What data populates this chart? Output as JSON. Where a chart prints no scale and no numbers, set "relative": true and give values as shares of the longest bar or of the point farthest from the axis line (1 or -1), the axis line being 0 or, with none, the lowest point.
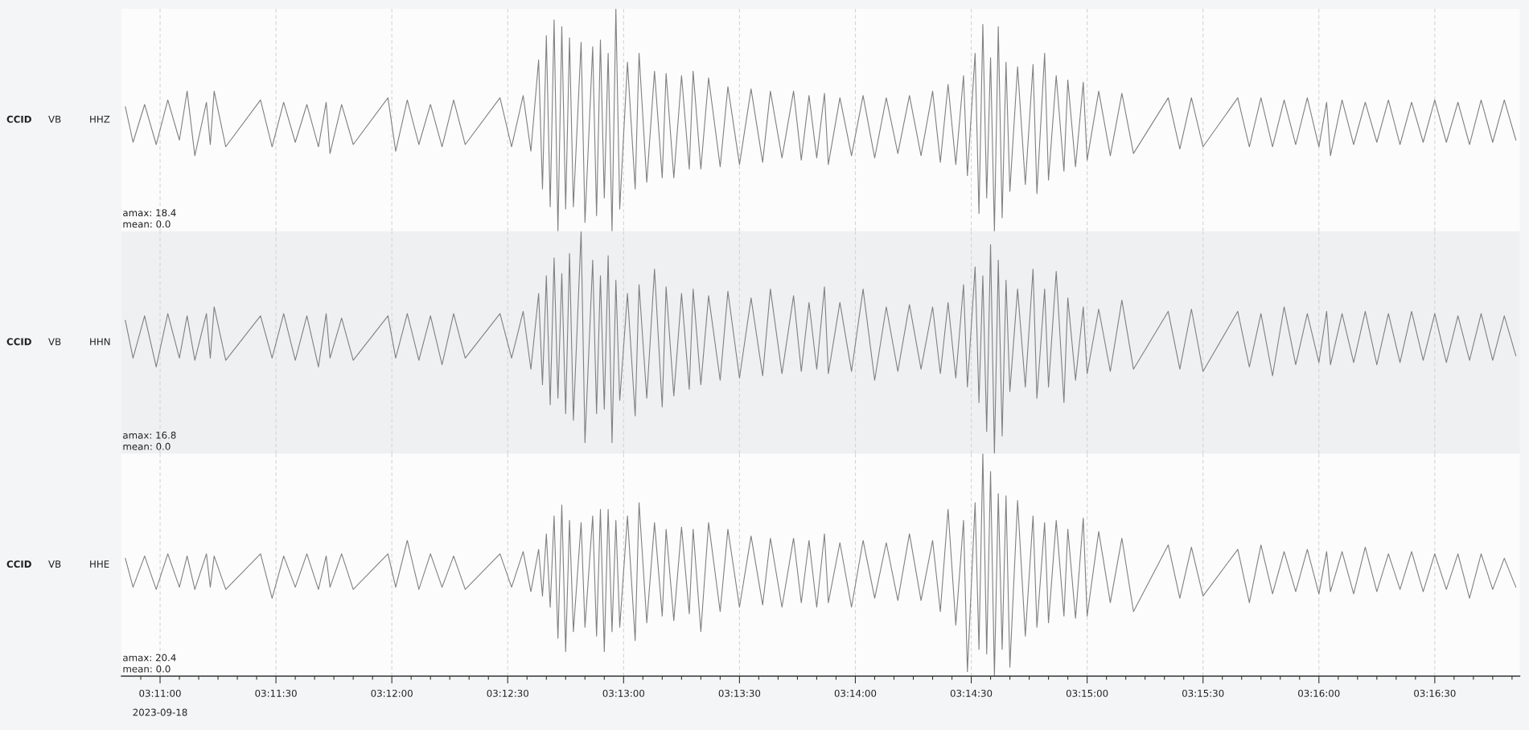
{
  "chart_data": [
    {
      "type": "line",
      "relative": true,
      "grid": "x",
      "tick_labels": false,
      "xlim": [
        "2023-09-18T03:10:50",
        "2023-09-18T03:16:52"
      ],
      "xticks": [
        {
          "value": "2023-09-18T03:11:00",
          "label": null
        },
        {
          "value": "2023-09-18T03:11:30",
          "label": null
        },
        {
          "value": "2023-09-18T03:12:00",
          "label": null
        },
        {
          "value": "2023-09-18T03:12:30",
          "label": null
        },
        {
          "value": "2023-09-18T03:13:00",
          "label": null
        },
        {
          "value": "2023-09-18T03:13:30",
          "label": null
        },
        {
          "value": "2023-09-18T03:14:00",
          "label": null
        },
        {
          "value": "2023-09-18T03:14:30",
          "label": null
        },
        {
          "value": "2023-09-18T03:15:00",
          "label": null
        },
        {
          "value": "2023-09-18T03:15:30",
          "label": null
        },
        {
          "value": "2023-09-18T03:16:00",
          "label": null
        },
        {
          "value": "2023-09-18T03:16:30",
          "label": null
        }
      ],
      "x": [
        "2023-09-18T03:10:51",
        "2023-09-18T03:10:53",
        "2023-09-18T03:10:56",
        "2023-09-18T03:10:59",
        "2023-09-18T03:11:02",
        "2023-09-18T03:11:05",
        "2023-09-18T03:11:07",
        "2023-09-18T03:11:09",
        "2023-09-18T03:11:12",
        "2023-09-18T03:11:13",
        "2023-09-18T03:11:14",
        "2023-09-18T03:11:17",
        "2023-09-18T03:11:26",
        "2023-09-18T03:11:29",
        "2023-09-18T03:11:32",
        "2023-09-18T03:11:35",
        "2023-09-18T03:11:38",
        "2023-09-18T03:11:41",
        "2023-09-18T03:11:43",
        "2023-09-18T03:11:44",
        "2023-09-18T03:11:47",
        "2023-09-18T03:11:50",
        "2023-09-18T03:11:59",
        "2023-09-18T03:12:01",
        "2023-09-18T03:12:04",
        "2023-09-18T03:12:07",
        "2023-09-18T03:12:10",
        "2023-09-18T03:12:13",
        "2023-09-18T03:12:16",
        "2023-09-18T03:12:19",
        "2023-09-18T03:12:28",
        "2023-09-18T03:12:31",
        "2023-09-18T03:12:34",
        "2023-09-18T03:12:36",
        "2023-09-18T03:12:38",
        "2023-09-18T03:12:39",
        "2023-09-18T03:12:40",
        "2023-09-18T03:12:41",
        "2023-09-18T03:12:42",
        "2023-09-18T03:12:43",
        "2023-09-18T03:12:44",
        "2023-09-18T03:12:45",
        "2023-09-18T03:12:46",
        "2023-09-18T03:12:47",
        "2023-09-18T03:12:49",
        "2023-09-18T03:12:50",
        "2023-09-18T03:12:52",
        "2023-09-18T03:12:53",
        "2023-09-18T03:12:54",
        "2023-09-18T03:12:55",
        "2023-09-18T03:12:56",
        "2023-09-18T03:12:57",
        "2023-09-18T03:12:58",
        "2023-09-18T03:12:59",
        "2023-09-18T03:13:01",
        "2023-09-18T03:13:03",
        "2023-09-18T03:13:04",
        "2023-09-18T03:13:06",
        "2023-09-18T03:13:08",
        "2023-09-18T03:13:10",
        "2023-09-18T03:13:11",
        "2023-09-18T03:13:13",
        "2023-09-18T03:13:15",
        "2023-09-18T03:13:17",
        "2023-09-18T03:13:18",
        "2023-09-18T03:13:20",
        "2023-09-18T03:13:22",
        "2023-09-18T03:13:25",
        "2023-09-18T03:13:27",
        "2023-09-18T03:13:30",
        "2023-09-18T03:13:33",
        "2023-09-18T03:13:36",
        "2023-09-18T03:13:38",
        "2023-09-18T03:13:41",
        "2023-09-18T03:13:44",
        "2023-09-18T03:13:46",
        "2023-09-18T03:13:48",
        "2023-09-18T03:13:50",
        "2023-09-18T03:13:52",
        "2023-09-18T03:13:53",
        "2023-09-18T03:13:56",
        "2023-09-18T03:13:59",
        "2023-09-18T03:14:02",
        "2023-09-18T03:14:05",
        "2023-09-18T03:14:08",
        "2023-09-18T03:14:11",
        "2023-09-18T03:14:14",
        "2023-09-18T03:14:17",
        "2023-09-18T03:14:20",
        "2023-09-18T03:14:22",
        "2023-09-18T03:14:24",
        "2023-09-18T03:14:26",
        "2023-09-18T03:14:28",
        "2023-09-18T03:14:29",
        "2023-09-18T03:14:31",
        "2023-09-18T03:14:32",
        "2023-09-18T03:14:33",
        "2023-09-18T03:14:34",
        "2023-09-18T03:14:35",
        "2023-09-18T03:14:36",
        "2023-09-18T03:14:37",
        "2023-09-18T03:14:38",
        "2023-09-18T03:14:39",
        "2023-09-18T03:14:40",
        "2023-09-18T03:14:42",
        "2023-09-18T03:14:44",
        "2023-09-18T03:14:46",
        "2023-09-18T03:14:47",
        "2023-09-18T03:14:49",
        "2023-09-18T03:14:50",
        "2023-09-18T03:14:52",
        "2023-09-18T03:14:54",
        "2023-09-18T03:14:55",
        "2023-09-18T03:14:57",
        "2023-09-18T03:14:59",
        "2023-09-18T03:15:00",
        "2023-09-18T03:15:03",
        "2023-09-18T03:15:06",
        "2023-09-18T03:15:09",
        "2023-09-18T03:15:12",
        "2023-09-18T03:15:21",
        "2023-09-18T03:15:24",
        "2023-09-18T03:15:27",
        "2023-09-18T03:15:30",
        "2023-09-18T03:15:39",
        "2023-09-18T03:15:42",
        "2023-09-18T03:15:45",
        "2023-09-18T03:15:48",
        "2023-09-18T03:15:51",
        "2023-09-18T03:15:54",
        "2023-09-18T03:15:57",
        "2023-09-18T03:16:00",
        "2023-09-18T03:16:02",
        "2023-09-18T03:16:03",
        "2023-09-18T03:16:06",
        "2023-09-18T03:16:09",
        "2023-09-18T03:16:12",
        "2023-09-18T03:16:15",
        "2023-09-18T03:16:18",
        "2023-09-18T03:16:21",
        "2023-09-18T03:16:24",
        "2023-09-18T03:16:27",
        "2023-09-18T03:16:30",
        "2023-09-18T03:16:33",
        "2023-09-18T03:16:36",
        "2023-09-18T03:16:39",
        "2023-09-18T03:16:42",
        "2023-09-18T03:16:45",
        "2023-09-18T03:16:48",
        "2023-09-18T03:16:51"
      ],
      "series": [
        {
          "color": "#808080",
          "values": [
            0.56,
            0.4,
            0.57,
            0.39,
            0.59,
            0.41,
            0.63,
            0.34,
            0.58,
            0.39,
            0.63,
            0.38,
            0.59,
            0.38,
            0.58,
            0.4,
            0.57,
            0.38,
            0.58,
            0.35,
            0.57,
            0.39,
            0.6,
            0.36,
            0.59,
            0.39,
            0.57,
            0.38,
            0.59,
            0.39,
            0.6,
            0.38,
            0.61,
            0.36,
            0.77,
            0.19,
            0.88,
            0.11,
            0.95,
            0,
            0.92,
            0.1,
            0.87,
            0.11,
            0.85,
            0.04,
            0.83,
            0.07,
            0.86,
            0.15,
            0.8,
            0,
            1,
            0.1,
            0.76,
            0.19,
            0.8,
            0.22,
            0.72,
            0.24,
            0.71,
            0.24,
            0.7,
            0.28,
            0.72,
            0.28,
            0.69,
            0.29,
            0.65,
            0.3,
            0.64,
            0.31,
            0.63,
            0.33,
            0.63,
            0.32,
            0.61,
            0.33,
            0.62,
            0.3,
            0.6,
            0.34,
            0.61,
            0.33,
            0.6,
            0.35,
            0.61,
            0.34,
            0.63,
            0.31,
            0.66,
            0.3,
            0.7,
            0.25,
            0.8,
            0.08,
            0.93,
            0.15,
            0.78,
            0,
            0.92,
            0.06,
            0.76,
            0.18,
            0.74,
            0.21,
            0.75,
            0.17,
            0.8,
            0.23,
            0.7,
            0.27,
            0.68,
            0.29,
            0.67,
            0.32,
            0.63,
            0.34,
            0.62,
            0.35,
            0.6,
            0.37,
            0.6,
            0.38,
            0.6,
            0.38,
            0.6,
            0.38,
            0.59,
            0.39,
            0.6,
            0.38,
            0.58,
            0.34,
            0.59,
            0.39,
            0.58,
            0.4,
            0.59,
            0.39,
            0.58,
            0.4,
            0.59,
            0.4,
            0.58,
            0.39,
            0.59,
            0.4,
            0.59,
            0.41
          ]
        }
      ],
      "annotations": [
        "CCID",
        "VB",
        "HHZ",
        "amax: 18.4",
        "mean: 0.0"
      ]
    },
    {
      "type": "line",
      "relative": true,
      "grid": "x",
      "tick_labels": false,
      "xlim": [
        "2023-09-18T03:10:50",
        "2023-09-18T03:16:52"
      ],
      "xticks": [
        {
          "value": "2023-09-18T03:11:00",
          "label": null
        },
        {
          "value": "2023-09-18T03:11:30",
          "label": null
        },
        {
          "value": "2023-09-18T03:12:00",
          "label": null
        },
        {
          "value": "2023-09-18T03:12:30",
          "label": null
        },
        {
          "value": "2023-09-18T03:13:00",
          "label": null
        },
        {
          "value": "2023-09-18T03:13:30",
          "label": null
        },
        {
          "value": "2023-09-18T03:14:00",
          "label": null
        },
        {
          "value": "2023-09-18T03:14:30",
          "label": null
        },
        {
          "value": "2023-09-18T03:15:00",
          "label": null
        },
        {
          "value": "2023-09-18T03:15:30",
          "label": null
        },
        {
          "value": "2023-09-18T03:16:00",
          "label": null
        },
        {
          "value": "2023-09-18T03:16:30",
          "label": null
        }
      ],
      "x": [
        "2023-09-18T03:10:51",
        "2023-09-18T03:10:53",
        "2023-09-18T03:10:56",
        "2023-09-18T03:10:59",
        "2023-09-18T03:11:02",
        "2023-09-18T03:11:05",
        "2023-09-18T03:11:07",
        "2023-09-18T03:11:09",
        "2023-09-18T03:11:12",
        "2023-09-18T03:11:13",
        "2023-09-18T03:11:14",
        "2023-09-18T03:11:17",
        "2023-09-18T03:11:26",
        "2023-09-18T03:11:29",
        "2023-09-18T03:11:32",
        "2023-09-18T03:11:35",
        "2023-09-18T03:11:38",
        "2023-09-18T03:11:41",
        "2023-09-18T03:11:43",
        "2023-09-18T03:11:44",
        "2023-09-18T03:11:47",
        "2023-09-18T03:11:50",
        "2023-09-18T03:11:59",
        "2023-09-18T03:12:01",
        "2023-09-18T03:12:04",
        "2023-09-18T03:12:07",
        "2023-09-18T03:12:10",
        "2023-09-18T03:12:13",
        "2023-09-18T03:12:16",
        "2023-09-18T03:12:19",
        "2023-09-18T03:12:28",
        "2023-09-18T03:12:31",
        "2023-09-18T03:12:34",
        "2023-09-18T03:12:36",
        "2023-09-18T03:12:38",
        "2023-09-18T03:12:39",
        "2023-09-18T03:12:40",
        "2023-09-18T03:12:41",
        "2023-09-18T03:12:42",
        "2023-09-18T03:12:43",
        "2023-09-18T03:12:44",
        "2023-09-18T03:12:45",
        "2023-09-18T03:12:46",
        "2023-09-18T03:12:47",
        "2023-09-18T03:12:49",
        "2023-09-18T03:12:50",
        "2023-09-18T03:12:52",
        "2023-09-18T03:12:53",
        "2023-09-18T03:12:54",
        "2023-09-18T03:12:55",
        "2023-09-18T03:12:56",
        "2023-09-18T03:12:57",
        "2023-09-18T03:12:58",
        "2023-09-18T03:12:59",
        "2023-09-18T03:13:01",
        "2023-09-18T03:13:03",
        "2023-09-18T03:13:04",
        "2023-09-18T03:13:06",
        "2023-09-18T03:13:08",
        "2023-09-18T03:13:10",
        "2023-09-18T03:13:11",
        "2023-09-18T03:13:13",
        "2023-09-18T03:13:15",
        "2023-09-18T03:13:17",
        "2023-09-18T03:13:18",
        "2023-09-18T03:13:20",
        "2023-09-18T03:13:22",
        "2023-09-18T03:13:25",
        "2023-09-18T03:13:27",
        "2023-09-18T03:13:30",
        "2023-09-18T03:13:33",
        "2023-09-18T03:13:36",
        "2023-09-18T03:13:38",
        "2023-09-18T03:13:41",
        "2023-09-18T03:13:44",
        "2023-09-18T03:13:46",
        "2023-09-18T03:13:48",
        "2023-09-18T03:13:50",
        "2023-09-18T03:13:52",
        "2023-09-18T03:13:53",
        "2023-09-18T03:13:56",
        "2023-09-18T03:13:59",
        "2023-09-18T03:14:02",
        "2023-09-18T03:14:05",
        "2023-09-18T03:14:08",
        "2023-09-18T03:14:11",
        "2023-09-18T03:14:14",
        "2023-09-18T03:14:17",
        "2023-09-18T03:14:20",
        "2023-09-18T03:14:22",
        "2023-09-18T03:14:24",
        "2023-09-18T03:14:26",
        "2023-09-18T03:14:28",
        "2023-09-18T03:14:29",
        "2023-09-18T03:14:31",
        "2023-09-18T03:14:32",
        "2023-09-18T03:14:33",
        "2023-09-18T03:14:34",
        "2023-09-18T03:14:35",
        "2023-09-18T03:14:36",
        "2023-09-18T03:14:37",
        "2023-09-18T03:14:38",
        "2023-09-18T03:14:39",
        "2023-09-18T03:14:40",
        "2023-09-18T03:14:42",
        "2023-09-18T03:14:44",
        "2023-09-18T03:14:46",
        "2023-09-18T03:14:47",
        "2023-09-18T03:14:49",
        "2023-09-18T03:14:50",
        "2023-09-18T03:14:52",
        "2023-09-18T03:14:54",
        "2023-09-18T03:14:55",
        "2023-09-18T03:14:57",
        "2023-09-18T03:14:59",
        "2023-09-18T03:15:00",
        "2023-09-18T03:15:03",
        "2023-09-18T03:15:06",
        "2023-09-18T03:15:09",
        "2023-09-18T03:15:12",
        "2023-09-18T03:15:21",
        "2023-09-18T03:15:24",
        "2023-09-18T03:15:27",
        "2023-09-18T03:15:30",
        "2023-09-18T03:15:39",
        "2023-09-18T03:15:42",
        "2023-09-18T03:15:45",
        "2023-09-18T03:15:48",
        "2023-09-18T03:15:51",
        "2023-09-18T03:15:54",
        "2023-09-18T03:15:57",
        "2023-09-18T03:16:00",
        "2023-09-18T03:16:02",
        "2023-09-18T03:16:03",
        "2023-09-18T03:16:06",
        "2023-09-18T03:16:09",
        "2023-09-18T03:16:12",
        "2023-09-18T03:16:15",
        "2023-09-18T03:16:18",
        "2023-09-18T03:16:21",
        "2023-09-18T03:16:24",
        "2023-09-18T03:16:27",
        "2023-09-18T03:16:30",
        "2023-09-18T03:16:33",
        "2023-09-18T03:16:36",
        "2023-09-18T03:16:39",
        "2023-09-18T03:16:42",
        "2023-09-18T03:16:45",
        "2023-09-18T03:16:48",
        "2023-09-18T03:16:51"
      ],
      "series": [
        {
          "color": "#808080",
          "values": [
            0.6,
            0.43,
            0.62,
            0.39,
            0.63,
            0.43,
            0.62,
            0.42,
            0.63,
            0.43,
            0.66,
            0.42,
            0.62,
            0.43,
            0.63,
            0.42,
            0.62,
            0.39,
            0.63,
            0.43,
            0.61,
            0.42,
            0.62,
            0.43,
            0.63,
            0.42,
            0.62,
            0.4,
            0.63,
            0.43,
            0.63,
            0.43,
            0.64,
            0.38,
            0.72,
            0.31,
            0.8,
            0.22,
            0.88,
            0.25,
            0.81,
            0.18,
            0.9,
            0.15,
            1,
            0.05,
            0.87,
            0.18,
            0.8,
            0.2,
            0.89,
            0.05,
            0.78,
            0.24,
            0.72,
            0.17,
            0.76,
            0.25,
            0.83,
            0.21,
            0.75,
            0.26,
            0.72,
            0.29,
            0.74,
            0.31,
            0.71,
            0.33,
            0.73,
            0.34,
            0.7,
            0.35,
            0.74,
            0.36,
            0.71,
            0.37,
            0.68,
            0.38,
            0.75,
            0.36,
            0.68,
            0.37,
            0.74,
            0.33,
            0.66,
            0.37,
            0.67,
            0.38,
            0.66,
            0.36,
            0.68,
            0.34,
            0.76,
            0.3,
            0.84,
            0.23,
            0.8,
            0.1,
            0.94,
            0,
            0.87,
            0.08,
            0.78,
            0.28,
            0.74,
            0.3,
            0.83,
            0.25,
            0.74,
            0.3,
            0.82,
            0.23,
            0.7,
            0.33,
            0.66,
            0.36,
            0.65,
            0.37,
            0.69,
            0.38,
            0.64,
            0.38,
            0.65,
            0.37,
            0.64,
            0.39,
            0.63,
            0.35,
            0.66,
            0.4,
            0.63,
            0.41,
            0.64,
            0.4,
            0.63,
            0.41,
            0.64,
            0.4,
            0.63,
            0.41,
            0.64,
            0.42,
            0.63,
            0.41,
            0.62,
            0.42,
            0.63,
            0.42,
            0.62,
            0.44
          ]
        }
      ],
      "annotations": [
        "CCID",
        "VB",
        "HHN",
        "amax: 16.8",
        "mean: 0.0"
      ]
    },
    {
      "type": "line",
      "relative": true,
      "grid": "x",
      "tick_labels": "x",
      "xlim": [
        "2023-09-18T03:10:50",
        "2023-09-18T03:16:52"
      ],
      "xticks": [
        {
          "value": "2023-09-18T03:11:00",
          "label": "03:11:00"
        },
        {
          "value": "2023-09-18T03:11:30",
          "label": "03:11:30"
        },
        {
          "value": "2023-09-18T03:12:00",
          "label": "03:12:00"
        },
        {
          "value": "2023-09-18T03:12:30",
          "label": "03:12:30"
        },
        {
          "value": "2023-09-18T03:13:00",
          "label": "03:13:00"
        },
        {
          "value": "2023-09-18T03:13:30",
          "label": "03:13:30"
        },
        {
          "value": "2023-09-18T03:14:00",
          "label": "03:14:00"
        },
        {
          "value": "2023-09-18T03:14:30",
          "label": "03:14:30"
        },
        {
          "value": "2023-09-18T03:15:00",
          "label": "03:15:00"
        },
        {
          "value": "2023-09-18T03:15:30",
          "label": "03:15:30"
        },
        {
          "value": "2023-09-18T03:16:00",
          "label": "03:16:00"
        },
        {
          "value": "2023-09-18T03:16:30",
          "label": "03:16:30"
        },
        {
          "value": "2023-09-18T03:10:55",
          "label": null
        },
        {
          "value": "2023-09-18T03:11:05",
          "label": null
        },
        {
          "value": "2023-09-18T03:11:10",
          "label": null
        },
        {
          "value": "2023-09-18T03:11:15",
          "label": null
        },
        {
          "value": "2023-09-18T03:11:20",
          "label": null
        },
        {
          "value": "2023-09-18T03:11:25",
          "label": null
        },
        {
          "value": "2023-09-18T03:11:35",
          "label": null
        },
        {
          "value": "2023-09-18T03:11:40",
          "label": null
        },
        {
          "value": "2023-09-18T03:11:45",
          "label": null
        },
        {
          "value": "2023-09-18T03:11:50",
          "label": null
        },
        {
          "value": "2023-09-18T03:11:55",
          "label": null
        },
        {
          "value": "2023-09-18T03:12:05",
          "label": null
        },
        {
          "value": "2023-09-18T03:12:10",
          "label": null
        },
        {
          "value": "2023-09-18T03:12:15",
          "label": null
        },
        {
          "value": "2023-09-18T03:12:20",
          "label": null
        },
        {
          "value": "2023-09-18T03:12:25",
          "label": null
        },
        {
          "value": "2023-09-18T03:12:35",
          "label": null
        },
        {
          "value": "2023-09-18T03:12:40",
          "label": null
        },
        {
          "value": "2023-09-18T03:12:45",
          "label": null
        },
        {
          "value": "2023-09-18T03:12:50",
          "label": null
        },
        {
          "value": "2023-09-18T03:12:55",
          "label": null
        },
        {
          "value": "2023-09-18T03:13:05",
          "label": null
        },
        {
          "value": "2023-09-18T03:13:10",
          "label": null
        },
        {
          "value": "2023-09-18T03:13:15",
          "label": null
        },
        {
          "value": "2023-09-18T03:13:20",
          "label": null
        },
        {
          "value": "2023-09-18T03:13:25",
          "label": null
        },
        {
          "value": "2023-09-18T03:13:35",
          "label": null
        },
        {
          "value": "2023-09-18T03:13:40",
          "label": null
        },
        {
          "value": "2023-09-18T03:13:45",
          "label": null
        },
        {
          "value": "2023-09-18T03:13:50",
          "label": null
        },
        {
          "value": "2023-09-18T03:13:55",
          "label": null
        },
        {
          "value": "2023-09-18T03:14:05",
          "label": null
        },
        {
          "value": "2023-09-18T03:14:10",
          "label": null
        },
        {
          "value": "2023-09-18T03:14:15",
          "label": null
        },
        {
          "value": "2023-09-18T03:14:20",
          "label": null
        },
        {
          "value": "2023-09-18T03:14:25",
          "label": null
        },
        {
          "value": "2023-09-18T03:14:35",
          "label": null
        },
        {
          "value": "2023-09-18T03:14:40",
          "label": null
        },
        {
          "value": "2023-09-18T03:14:45",
          "label": null
        },
        {
          "value": "2023-09-18T03:14:50",
          "label": null
        },
        {
          "value": "2023-09-18T03:14:55",
          "label": null
        },
        {
          "value": "2023-09-18T03:15:05",
          "label": null
        },
        {
          "value": "2023-09-18T03:15:10",
          "label": null
        },
        {
          "value": "2023-09-18T03:15:15",
          "label": null
        },
        {
          "value": "2023-09-18T03:15:20",
          "label": null
        },
        {
          "value": "2023-09-18T03:15:25",
          "label": null
        },
        {
          "value": "2023-09-18T03:15:35",
          "label": null
        },
        {
          "value": "2023-09-18T03:15:40",
          "label": null
        },
        {
          "value": "2023-09-18T03:15:45",
          "label": null
        },
        {
          "value": "2023-09-18T03:15:50",
          "label": null
        },
        {
          "value": "2023-09-18T03:15:55",
          "label": null
        },
        {
          "value": "2023-09-18T03:16:05",
          "label": null
        },
        {
          "value": "2023-09-18T03:16:10",
          "label": null
        },
        {
          "value": "2023-09-18T03:16:15",
          "label": null
        },
        {
          "value": "2023-09-18T03:16:20",
          "label": null
        },
        {
          "value": "2023-09-18T03:16:25",
          "label": null
        },
        {
          "value": "2023-09-18T03:16:35",
          "label": null
        },
        {
          "value": "2023-09-18T03:16:40",
          "label": null
        },
        {
          "value": "2023-09-18T03:16:45",
          "label": null
        },
        {
          "value": "2023-09-18T03:16:50",
          "label": null
        }
      ],
      "x": [
        "2023-09-18T03:10:51",
        "2023-09-18T03:10:53",
        "2023-09-18T03:10:56",
        "2023-09-18T03:10:59",
        "2023-09-18T03:11:02",
        "2023-09-18T03:11:05",
        "2023-09-18T03:11:07",
        "2023-09-18T03:11:09",
        "2023-09-18T03:11:12",
        "2023-09-18T03:11:13",
        "2023-09-18T03:11:14",
        "2023-09-18T03:11:17",
        "2023-09-18T03:11:26",
        "2023-09-18T03:11:29",
        "2023-09-18T03:11:32",
        "2023-09-18T03:11:35",
        "2023-09-18T03:11:38",
        "2023-09-18T03:11:41",
        "2023-09-18T03:11:43",
        "2023-09-18T03:11:44",
        "2023-09-18T03:11:47",
        "2023-09-18T03:11:50",
        "2023-09-18T03:11:59",
        "2023-09-18T03:12:01",
        "2023-09-18T03:12:04",
        "2023-09-18T03:12:07",
        "2023-09-18T03:12:10",
        "2023-09-18T03:12:13",
        "2023-09-18T03:12:16",
        "2023-09-18T03:12:19",
        "2023-09-18T03:12:28",
        "2023-09-18T03:12:31",
        "2023-09-18T03:12:34",
        "2023-09-18T03:12:36",
        "2023-09-18T03:12:38",
        "2023-09-18T03:12:39",
        "2023-09-18T03:12:40",
        "2023-09-18T03:12:41",
        "2023-09-18T03:12:42",
        "2023-09-18T03:12:43",
        "2023-09-18T03:12:44",
        "2023-09-18T03:12:45",
        "2023-09-18T03:12:46",
        "2023-09-18T03:12:47",
        "2023-09-18T03:12:49",
        "2023-09-18T03:12:50",
        "2023-09-18T03:12:52",
        "2023-09-18T03:12:53",
        "2023-09-18T03:12:54",
        "2023-09-18T03:12:55",
        "2023-09-18T03:12:56",
        "2023-09-18T03:12:57",
        "2023-09-18T03:12:58",
        "2023-09-18T03:12:59",
        "2023-09-18T03:13:01",
        "2023-09-18T03:13:03",
        "2023-09-18T03:13:04",
        "2023-09-18T03:13:06",
        "2023-09-18T03:13:08",
        "2023-09-18T03:13:10",
        "2023-09-18T03:13:11",
        "2023-09-18T03:13:13",
        "2023-09-18T03:13:15",
        "2023-09-18T03:13:17",
        "2023-09-18T03:13:18",
        "2023-09-18T03:13:20",
        "2023-09-18T03:13:22",
        "2023-09-18T03:13:25",
        "2023-09-18T03:13:27",
        "2023-09-18T03:13:30",
        "2023-09-18T03:13:33",
        "2023-09-18T03:13:36",
        "2023-09-18T03:13:38",
        "2023-09-18T03:13:41",
        "2023-09-18T03:13:44",
        "2023-09-18T03:13:46",
        "2023-09-18T03:13:48",
        "2023-09-18T03:13:50",
        "2023-09-18T03:13:52",
        "2023-09-18T03:13:53",
        "2023-09-18T03:13:56",
        "2023-09-18T03:13:59",
        "2023-09-18T03:14:02",
        "2023-09-18T03:14:05",
        "2023-09-18T03:14:08",
        "2023-09-18T03:14:11",
        "2023-09-18T03:14:14",
        "2023-09-18T03:14:17",
        "2023-09-18T03:14:20",
        "2023-09-18T03:14:22",
        "2023-09-18T03:14:24",
        "2023-09-18T03:14:26",
        "2023-09-18T03:14:28",
        "2023-09-18T03:14:29",
        "2023-09-18T03:14:31",
        "2023-09-18T03:14:32",
        "2023-09-18T03:14:33",
        "2023-09-18T03:14:34",
        "2023-09-18T03:14:35",
        "2023-09-18T03:14:36",
        "2023-09-18T03:14:37",
        "2023-09-18T03:14:38",
        "2023-09-18T03:14:39",
        "2023-09-18T03:14:40",
        "2023-09-18T03:14:42",
        "2023-09-18T03:14:44",
        "2023-09-18T03:14:46",
        "2023-09-18T03:14:47",
        "2023-09-18T03:14:49",
        "2023-09-18T03:14:50",
        "2023-09-18T03:14:52",
        "2023-09-18T03:14:54",
        "2023-09-18T03:14:55",
        "2023-09-18T03:14:57",
        "2023-09-18T03:14:59",
        "2023-09-18T03:15:00",
        "2023-09-18T03:15:03",
        "2023-09-18T03:15:06",
        "2023-09-18T03:15:09",
        "2023-09-18T03:15:12",
        "2023-09-18T03:15:21",
        "2023-09-18T03:15:24",
        "2023-09-18T03:15:27",
        "2023-09-18T03:15:30",
        "2023-09-18T03:15:39",
        "2023-09-18T03:15:42",
        "2023-09-18T03:15:45",
        "2023-09-18T03:15:48",
        "2023-09-18T03:15:51",
        "2023-09-18T03:15:54",
        "2023-09-18T03:15:57",
        "2023-09-18T03:16:00",
        "2023-09-18T03:16:02",
        "2023-09-18T03:16:03",
        "2023-09-18T03:16:06",
        "2023-09-18T03:16:09",
        "2023-09-18T03:16:12",
        "2023-09-18T03:16:15",
        "2023-09-18T03:16:18",
        "2023-09-18T03:16:21",
        "2023-09-18T03:16:24",
        "2023-09-18T03:16:27",
        "2023-09-18T03:16:30",
        "2023-09-18T03:16:33",
        "2023-09-18T03:16:36",
        "2023-09-18T03:16:39",
        "2023-09-18T03:16:42",
        "2023-09-18T03:16:45",
        "2023-09-18T03:16:48",
        "2023-09-18T03:16:51"
      ],
      "series": [
        {
          "color": "#808080",
          "values": [
            0.53,
            0.4,
            0.54,
            0.39,
            0.55,
            0.4,
            0.54,
            0.39,
            0.55,
            0.4,
            0.54,
            0.39,
            0.55,
            0.35,
            0.54,
            0.4,
            0.55,
            0.39,
            0.54,
            0.4,
            0.55,
            0.39,
            0.55,
            0.4,
            0.61,
            0.39,
            0.55,
            0.4,
            0.54,
            0.39,
            0.55,
            0.4,
            0.56,
            0.38,
            0.57,
            0.36,
            0.64,
            0.31,
            0.72,
            0.17,
            0.77,
            0.11,
            0.7,
            0.2,
            0.69,
            0.22,
            0.72,
            0.18,
            0.75,
            0.11,
            0.75,
            0.2,
            0.7,
            0.22,
            0.72,
            0.16,
            0.78,
            0.24,
            0.69,
            0.27,
            0.66,
            0.25,
            0.67,
            0.28,
            0.66,
            0.2,
            0.69,
            0.29,
            0.66,
            0.31,
            0.63,
            0.32,
            0.62,
            0.31,
            0.62,
            0.33,
            0.61,
            0.31,
            0.64,
            0.33,
            0.6,
            0.31,
            0.61,
            0.35,
            0.6,
            0.34,
            0.64,
            0.34,
            0.61,
            0.29,
            0.75,
            0.23,
            0.7,
            0.02,
            0.78,
            0.12,
            1,
            0.1,
            0.92,
            0,
            0.82,
            0.12,
            0.81,
            0.04,
            0.79,
            0.18,
            0.72,
            0.22,
            0.69,
            0.24,
            0.7,
            0.27,
            0.66,
            0.26,
            0.71,
            0.27,
            0.65,
            0.33,
            0.62,
            0.29,
            0.59,
            0.35,
            0.58,
            0.36,
            0.57,
            0.33,
            0.59,
            0.37,
            0.56,
            0.38,
            0.57,
            0.37,
            0.56,
            0.38,
            0.56,
            0.37,
            0.58,
            0.38,
            0.55,
            0.39,
            0.56,
            0.38,
            0.55,
            0.39,
            0.55,
            0.35,
            0.55,
            0.39,
            0.53,
            0.4
          ]
        }
      ],
      "annotations": [
        "CCID",
        "VB",
        "HHE",
        "amax: 20.4",
        "mean: 0.0",
        "2023-09-18"
      ]
    }
  ]
}
